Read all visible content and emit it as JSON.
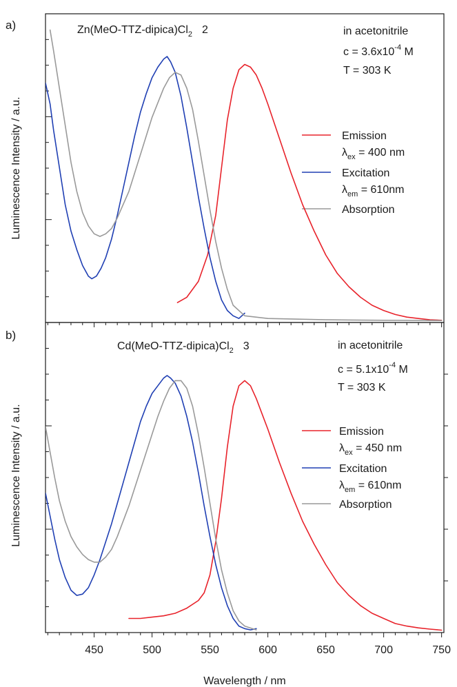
{
  "chart_data": [
    {
      "type": "line",
      "panel_label": "a)",
      "title": "Zn(MeO-TTZ-dipica)Cl",
      "title_subscript": "2",
      "title_suffix": "2",
      "info": [
        "in acetonitrile",
        "c = 3.6x10",
        "-4",
        " M",
        "T = 303 K"
      ],
      "ylabel": "Luminescence Intensity  / a.u.",
      "xlim": [
        408,
        752
      ],
      "ylim": [
        0,
        1.0
      ],
      "legend": [
        {
          "label": "Emission",
          "color": "#e8222a"
        },
        {
          "label_main": "λ",
          "label_sub": "ex",
          "label_rest": " = 400 nm"
        },
        {
          "label": "Excitation",
          "color": "#1f3fb3"
        },
        {
          "label_main": "λ",
          "label_sub": "em",
          "label_rest": " = 610nm"
        },
        {
          "label": "Absorption",
          "color": "#999999"
        }
      ],
      "series": [
        {
          "name": "Emission",
          "color": "#e8222a",
          "x": [
            522,
            530,
            540,
            548,
            555,
            560,
            565,
            570,
            575,
            580,
            585,
            590,
            595,
            600,
            610,
            620,
            630,
            640,
            650,
            660,
            670,
            680,
            690,
            700,
            710,
            720,
            730,
            740,
            750
          ],
          "y": [
            0.07,
            0.09,
            0.15,
            0.25,
            0.4,
            0.58,
            0.76,
            0.88,
            0.95,
            0.97,
            0.96,
            0.93,
            0.88,
            0.82,
            0.69,
            0.56,
            0.44,
            0.34,
            0.25,
            0.18,
            0.13,
            0.09,
            0.06,
            0.04,
            0.025,
            0.015,
            0.01,
            0.005,
            0.003
          ]
        },
        {
          "name": "Excitation",
          "color": "#1f3fb3",
          "x": [
            408,
            412,
            415,
            420,
            425,
            430,
            435,
            440,
            445,
            448,
            452,
            456,
            460,
            465,
            470,
            475,
            480,
            485,
            490,
            495,
            500,
            505,
            510,
            513,
            516,
            520,
            525,
            530,
            535,
            540,
            545,
            550,
            555,
            560,
            565,
            570,
            575,
            580
          ],
          "y": [
            0.9,
            0.82,
            0.72,
            0.58,
            0.44,
            0.34,
            0.27,
            0.21,
            0.17,
            0.16,
            0.17,
            0.2,
            0.24,
            0.31,
            0.4,
            0.5,
            0.6,
            0.7,
            0.79,
            0.86,
            0.92,
            0.96,
            0.99,
            1.0,
            0.98,
            0.94,
            0.85,
            0.73,
            0.6,
            0.47,
            0.35,
            0.24,
            0.15,
            0.08,
            0.04,
            0.02,
            0.01,
            0.03
          ]
        },
        {
          "name": "Absorption",
          "color": "#999999",
          "x": [
            412,
            415,
            420,
            425,
            430,
            435,
            440,
            445,
            450,
            455,
            460,
            465,
            470,
            480,
            490,
            500,
            510,
            515,
            520,
            525,
            530,
            535,
            540,
            545,
            550,
            555,
            560,
            565,
            570,
            580,
            600,
            650,
            700,
            750
          ],
          "y": [
            1.1,
            1.02,
            0.88,
            0.74,
            0.6,
            0.49,
            0.41,
            0.36,
            0.33,
            0.32,
            0.33,
            0.35,
            0.39,
            0.49,
            0.63,
            0.77,
            0.88,
            0.92,
            0.94,
            0.93,
            0.88,
            0.8,
            0.68,
            0.55,
            0.42,
            0.3,
            0.2,
            0.12,
            0.06,
            0.02,
            0.01,
            0.005,
            0.003,
            0.002
          ]
        }
      ]
    },
    {
      "type": "line",
      "panel_label": "b)",
      "title": "Cd(MeO-TTZ-dipica)Cl",
      "title_subscript": "2",
      "title_suffix": "3",
      "info": [
        "in acetonitrile",
        "c = 5.1x10",
        "-4",
        " M",
        "T = 303 K"
      ],
      "ylabel": "Luminescence Intensity  / a.u.",
      "xlabel": "Wavelength  / nm",
      "xlim": [
        408,
        752
      ],
      "ylim": [
        0,
        1.0
      ],
      "xticks": [
        450,
        500,
        550,
        600,
        650,
        700,
        750
      ],
      "legend": [
        {
          "label": "Emission",
          "color": "#e8222a"
        },
        {
          "label_main": "λ",
          "label_sub": "ex",
          "label_rest": " = 450 nm"
        },
        {
          "label": "Excitation",
          "color": "#1f3fb3"
        },
        {
          "label_main": "λ",
          "label_sub": "em",
          "label_rest": " = 610nm"
        },
        {
          "label": "Absorption",
          "color": "#999999"
        }
      ],
      "series": [
        {
          "name": "Emission",
          "color": "#e8222a",
          "x": [
            480,
            490,
            500,
            510,
            520,
            530,
            540,
            545,
            550,
            555,
            560,
            565,
            570,
            575,
            580,
            585,
            590,
            595,
            600,
            610,
            620,
            630,
            640,
            650,
            660,
            670,
            680,
            690,
            700,
            710,
            720,
            730,
            740,
            750
          ],
          "y": [
            0.05,
            0.05,
            0.055,
            0.06,
            0.07,
            0.09,
            0.12,
            0.15,
            0.22,
            0.35,
            0.52,
            0.72,
            0.88,
            0.96,
            0.98,
            0.96,
            0.91,
            0.85,
            0.79,
            0.66,
            0.54,
            0.43,
            0.34,
            0.26,
            0.19,
            0.14,
            0.1,
            0.07,
            0.05,
            0.03,
            0.02,
            0.013,
            0.008,
            0.004
          ]
        },
        {
          "name": "Excitation",
          "color": "#1f3fb3",
          "x": [
            408,
            412,
            416,
            420,
            425,
            430,
            435,
            440,
            445,
            450,
            455,
            460,
            465,
            470,
            475,
            480,
            485,
            490,
            495,
            500,
            505,
            510,
            513,
            516,
            520,
            525,
            530,
            535,
            540,
            545,
            550,
            555,
            560,
            565,
            570,
            575,
            580,
            585,
            590
          ],
          "y": [
            0.54,
            0.45,
            0.36,
            0.28,
            0.21,
            0.16,
            0.14,
            0.145,
            0.17,
            0.22,
            0.28,
            0.35,
            0.42,
            0.5,
            0.58,
            0.66,
            0.74,
            0.82,
            0.88,
            0.93,
            0.96,
            0.99,
            1.0,
            0.99,
            0.97,
            0.92,
            0.84,
            0.74,
            0.62,
            0.49,
            0.37,
            0.26,
            0.17,
            0.1,
            0.05,
            0.02,
            0.01,
            0.005,
            0.01
          ]
        },
        {
          "name": "Absorption",
          "color": "#999999",
          "x": [
            408,
            412,
            416,
            420,
            425,
            430,
            435,
            440,
            445,
            450,
            455,
            460,
            465,
            470,
            480,
            490,
            500,
            505,
            510,
            515,
            520,
            525,
            530,
            535,
            540,
            545,
            550,
            555,
            560,
            565,
            570,
            575,
            580,
            590
          ],
          "y": [
            0.8,
            0.7,
            0.6,
            0.51,
            0.43,
            0.37,
            0.33,
            0.3,
            0.28,
            0.27,
            0.27,
            0.29,
            0.32,
            0.37,
            0.49,
            0.63,
            0.77,
            0.84,
            0.9,
            0.95,
            0.98,
            0.98,
            0.95,
            0.88,
            0.77,
            0.64,
            0.5,
            0.36,
            0.24,
            0.15,
            0.08,
            0.04,
            0.02,
            0.005
          ]
        }
      ]
    }
  ]
}
